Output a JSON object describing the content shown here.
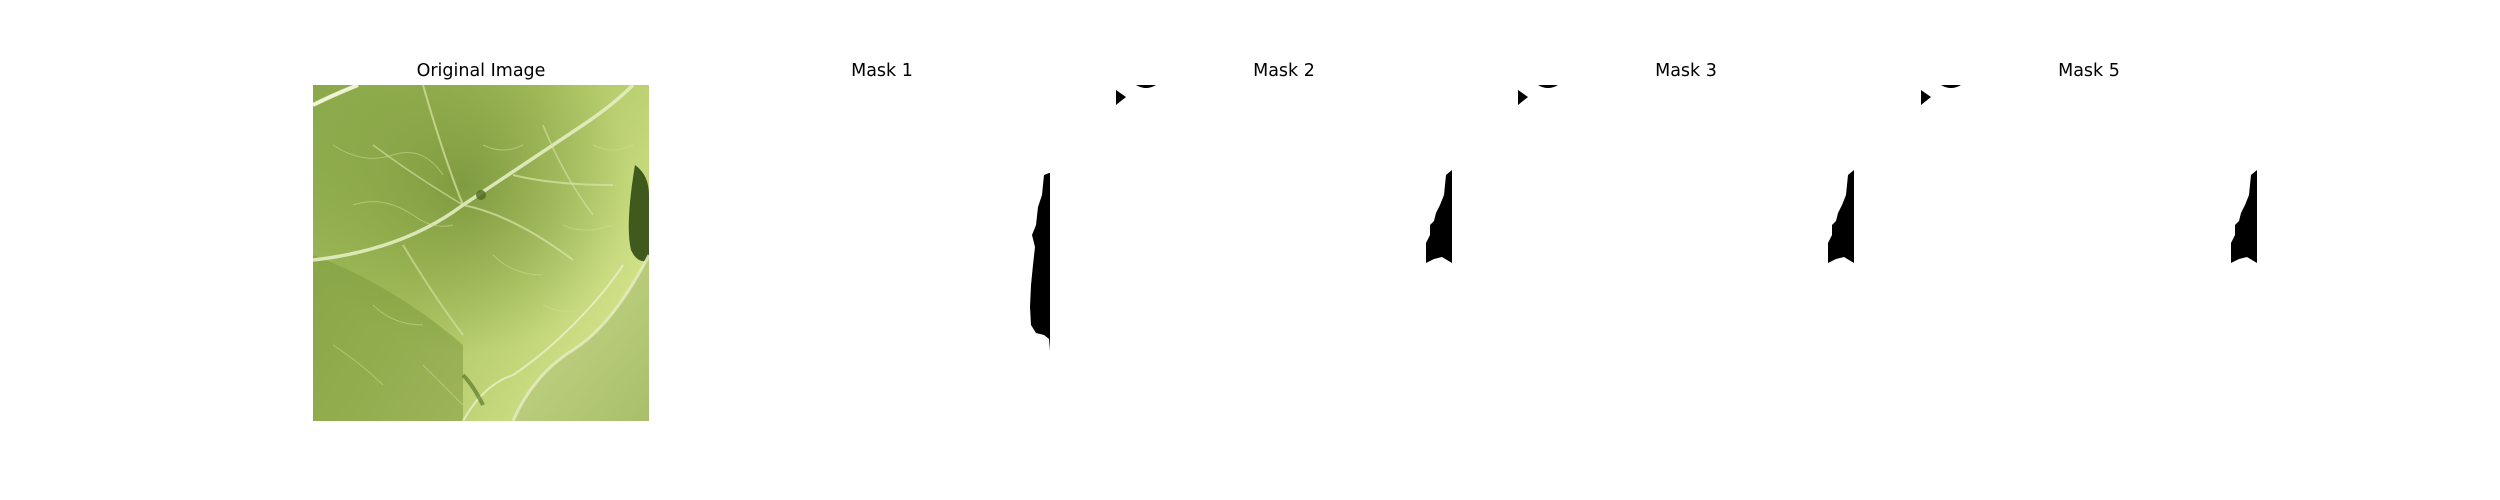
{
  "figure": {
    "panels": [
      {
        "title": "Original Image",
        "kind": "photo",
        "subject": "leaf"
      },
      {
        "title": "Mask 1",
        "kind": "mask"
      },
      {
        "title": "Mask 2",
        "kind": "mask"
      },
      {
        "title": "Mask 3",
        "kind": "mask"
      },
      {
        "title": "Mask 5",
        "kind": "mask"
      }
    ]
  },
  "colors": {
    "background": "#ffffff",
    "mask_foreground": "#000000",
    "leaf_light": "#c4d878",
    "leaf_mid": "#9ab556",
    "leaf_dark": "#5f7a2c",
    "leaf_shadow": "#3f5a1c",
    "vein": "#e8efc8"
  }
}
